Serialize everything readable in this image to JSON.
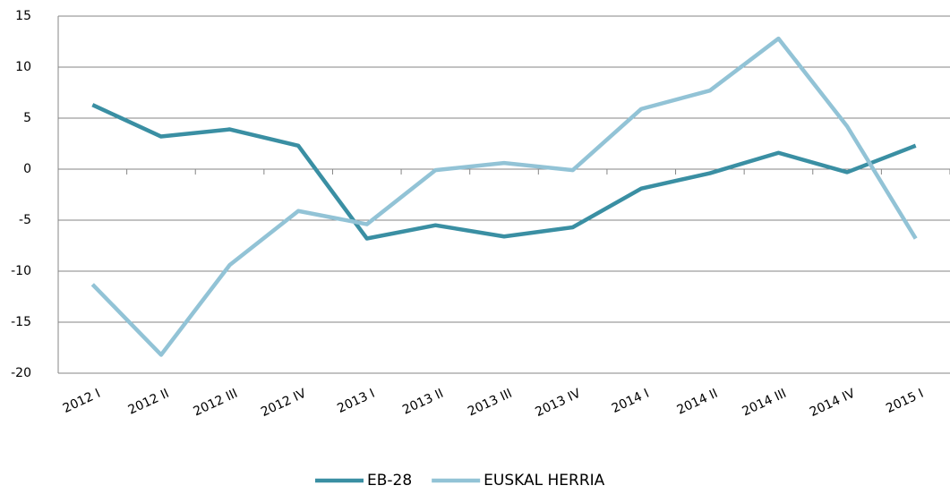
{
  "chart_data": {
    "type": "line",
    "categories": [
      "2012 I",
      "2012 II",
      "2012 III",
      "2012 IV",
      "2013 I",
      "2013 II",
      "2013 III",
      "2013 IV",
      "2014 I",
      "2014 II",
      "2014 III",
      "2014 IV",
      "2015 I"
    ],
    "series": [
      {
        "name": "EB-28",
        "color": "#3a8fa3",
        "values": [
          6.3,
          3.2,
          3.9,
          2.3,
          -6.8,
          -5.5,
          -6.6,
          -5.7,
          -1.9,
          -0.4,
          1.6,
          -0.3,
          2.3
        ]
      },
      {
        "name": "EUSKAL HERRIA",
        "color": "#92c3d6",
        "values": [
          -11.3,
          -18.2,
          -9.4,
          -4.1,
          -5.4,
          -0.1,
          0.6,
          -0.1,
          5.9,
          7.7,
          12.8,
          4.2,
          -6.8
        ]
      }
    ],
    "ylim": [
      -20,
      15
    ],
    "yticks": [
      -20,
      -15,
      -10,
      -5,
      0,
      5,
      10,
      15
    ],
    "grid": true,
    "negative_tick_color": "#ff0000",
    "legend": "bottom"
  }
}
